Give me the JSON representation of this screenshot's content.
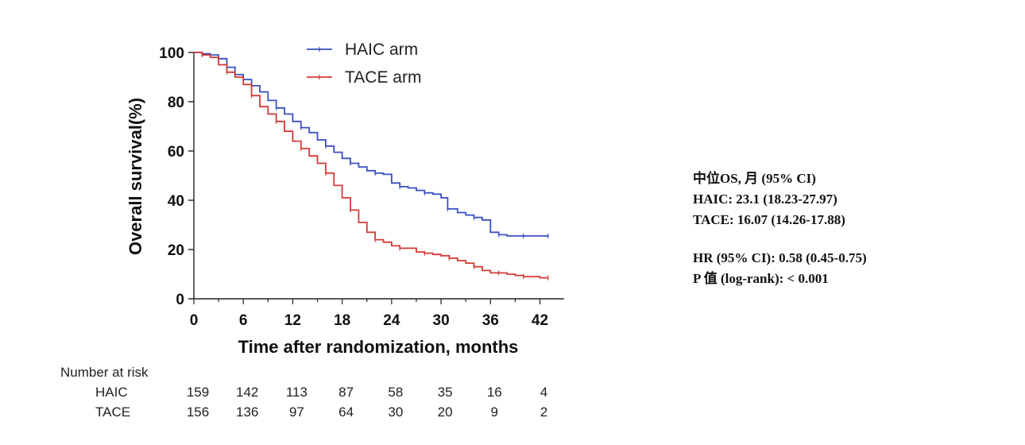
{
  "chart_data": {
    "type": "line",
    "subtype": "kaplan-meier",
    "xlabel": "Time after randomization, months",
    "ylabel": "Overall survival(%)",
    "xlim": [
      0,
      43
    ],
    "ylim": [
      0,
      100
    ],
    "xticks": [
      0,
      6,
      12,
      18,
      24,
      30,
      36,
      42
    ],
    "yticks": [
      0,
      20,
      40,
      60,
      80,
      100
    ],
    "grid": false,
    "legend_position": "top",
    "series": [
      {
        "name": "HAIC arm",
        "color": "#3a4fc4",
        "points": [
          [
            0,
            100
          ],
          [
            1,
            99.5
          ],
          [
            2,
            99
          ],
          [
            3,
            97.5
          ],
          [
            4,
            94
          ],
          [
            5,
            91
          ],
          [
            6,
            89
          ],
          [
            7,
            86.5
          ],
          [
            8,
            84
          ],
          [
            9,
            80.5
          ],
          [
            10,
            77.5
          ],
          [
            11,
            75
          ],
          [
            12,
            72
          ],
          [
            13,
            69.5
          ],
          [
            14,
            67.5
          ],
          [
            15,
            64.5
          ],
          [
            16,
            62
          ],
          [
            17,
            59.5
          ],
          [
            18,
            57
          ],
          [
            19,
            55
          ],
          [
            20,
            53.5
          ],
          [
            21,
            52
          ],
          [
            22,
            51
          ],
          [
            23,
            50.5
          ],
          [
            24,
            47
          ],
          [
            25,
            45.5
          ],
          [
            26,
            45
          ],
          [
            27,
            44
          ],
          [
            28,
            43
          ],
          [
            29,
            42.5
          ],
          [
            30,
            41
          ],
          [
            30.8,
            36.5
          ],
          [
            32,
            35
          ],
          [
            33,
            34
          ],
          [
            34,
            33
          ],
          [
            35,
            32
          ],
          [
            36,
            27
          ],
          [
            37,
            26
          ],
          [
            38,
            25.5
          ],
          [
            39,
            25.5
          ],
          [
            40,
            25.5
          ],
          [
            41,
            25.5
          ],
          [
            42,
            25.5
          ],
          [
            43,
            25.5
          ]
        ]
      },
      {
        "name": "TACE arm",
        "color": "#d43a36",
        "points": [
          [
            0,
            100
          ],
          [
            1,
            99
          ],
          [
            2,
            98
          ],
          [
            3,
            95
          ],
          [
            4,
            92
          ],
          [
            5,
            90
          ],
          [
            6,
            87
          ],
          [
            7,
            82.5
          ],
          [
            8,
            78
          ],
          [
            9,
            75
          ],
          [
            10,
            72
          ],
          [
            11,
            68
          ],
          [
            12,
            64
          ],
          [
            13,
            61
          ],
          [
            14,
            58
          ],
          [
            15,
            55
          ],
          [
            16,
            51
          ],
          [
            17,
            46
          ],
          [
            18,
            41
          ],
          [
            19,
            36
          ],
          [
            20,
            31
          ],
          [
            21,
            27
          ],
          [
            22,
            24
          ],
          [
            23,
            23
          ],
          [
            24,
            21.5
          ],
          [
            25,
            20.5
          ],
          [
            26,
            20.5
          ],
          [
            27,
            19
          ],
          [
            28,
            18.5
          ],
          [
            29,
            18
          ],
          [
            30,
            17.5
          ],
          [
            31,
            16.5
          ],
          [
            32,
            15.5
          ],
          [
            33,
            14.5
          ],
          [
            34,
            13
          ],
          [
            35,
            11.5
          ],
          [
            36,
            10.5
          ],
          [
            37,
            10.5
          ],
          [
            38,
            10
          ],
          [
            39,
            9.5
          ],
          [
            40,
            9
          ],
          [
            41,
            9
          ],
          [
            42,
            8.5
          ],
          [
            43,
            8.5
          ]
        ]
      }
    ]
  },
  "risk_table": {
    "title": "Number at risk",
    "times": [
      0,
      6,
      12,
      18,
      24,
      30,
      36,
      42
    ],
    "rows": [
      {
        "label": "HAIC",
        "values": [
          "159",
          "142",
          "113",
          "87",
          "58",
          "35",
          "16",
          "4"
        ]
      },
      {
        "label": "TACE",
        "values": [
          "156",
          "136",
          "97",
          "64",
          "30",
          "20",
          "9",
          "2"
        ]
      }
    ]
  },
  "stats": {
    "line1": "中位OS, 月 (95% CI)",
    "line2": "HAIC: 23.1 (18.23-27.97)",
    "line3": "TACE: 16.07 (14.26-17.88)",
    "line4": "HR (95% CI): 0.58 (0.45-0.75)",
    "line5": "P 值 (log-rank): < 0.001"
  }
}
